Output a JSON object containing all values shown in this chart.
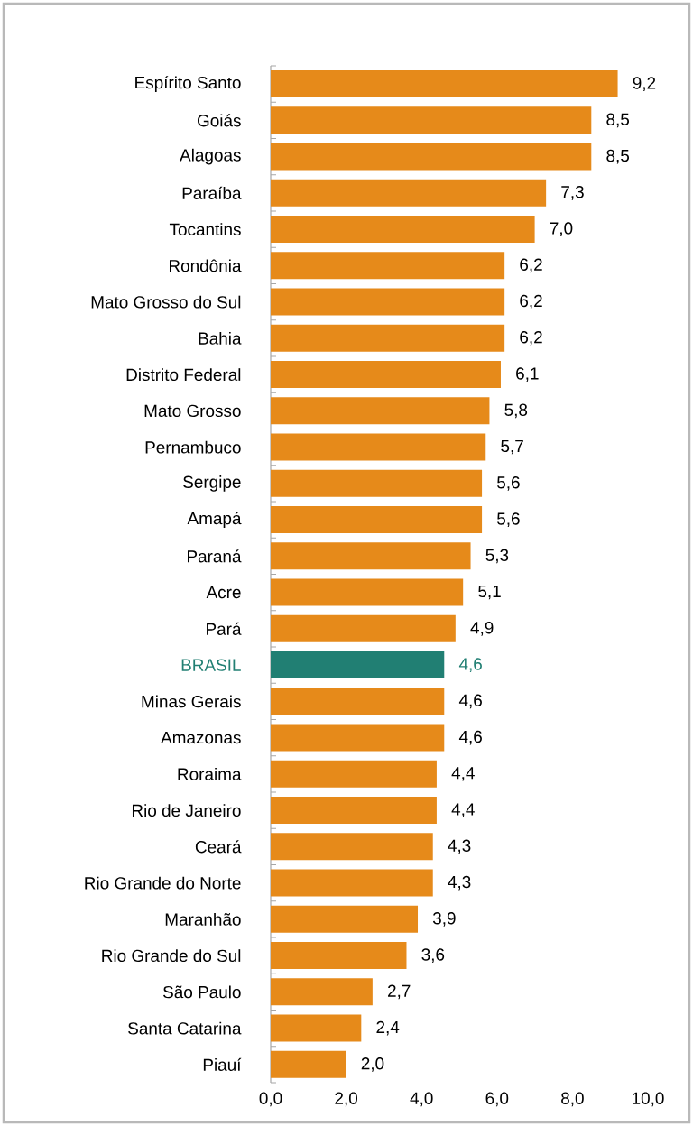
{
  "chart_data": {
    "type": "bar",
    "orientation": "horizontal",
    "categories": [
      "Espírito Santo",
      "Goiás",
      "Alagoas",
      "Paraíba",
      "Tocantins",
      "Rondônia",
      "Mato Grosso do Sul",
      "Bahia",
      "Distrito Federal",
      "Mato Grosso",
      "Pernambuco",
      "Sergipe",
      "Amapá",
      "Paraná",
      "Acre",
      "Pará",
      "BRASIL",
      "Minas Gerais",
      "Amazonas",
      "Roraima",
      "Rio de Janeiro",
      "Ceará",
      "Rio Grande do Norte",
      "Maranhão",
      "Rio Grande do Sul",
      "São Paulo",
      "Santa Catarina",
      "Piauí"
    ],
    "values": [
      9.2,
      8.5,
      8.5,
      7.3,
      7.0,
      6.2,
      6.2,
      6.2,
      6.1,
      5.8,
      5.7,
      5.6,
      5.6,
      5.3,
      5.1,
      4.9,
      4.6,
      4.6,
      4.6,
      4.4,
      4.4,
      4.3,
      4.3,
      3.9,
      3.6,
      2.7,
      2.4,
      2.0
    ],
    "value_labels": [
      "9,2",
      "8,5",
      "8,5",
      "7,3",
      "7,0",
      "6,2",
      "6,2",
      "6,2",
      "6,1",
      "5,8",
      "5,7",
      "5,6",
      "5,6",
      "5,3",
      "5,1",
      "4,9",
      "4,6",
      "4,6",
      "4,6",
      "4,4",
      "4,4",
      "4,3",
      "4,3",
      "3,9",
      "3,6",
      "2,7",
      "2,4",
      "2,0"
    ],
    "colors": [
      "#e68a1a",
      "#e68a1a",
      "#e68a1a",
      "#e68a1a",
      "#e68a1a",
      "#e68a1a",
      "#e68a1a",
      "#e68a1a",
      "#e68a1a",
      "#e68a1a",
      "#e68a1a",
      "#e68a1a",
      "#e68a1a",
      "#e68a1a",
      "#e68a1a",
      "#e68a1a",
      "#217f73",
      "#e68a1a",
      "#e68a1a",
      "#e68a1a",
      "#e68a1a",
      "#e68a1a",
      "#e68a1a",
      "#e68a1a",
      "#e68a1a",
      "#e68a1a",
      "#e68a1a",
      "#e68a1a"
    ],
    "xlim": [
      0,
      10
    ],
    "xticks": [
      {
        "value": 0,
        "label": "0,0"
      },
      {
        "value": 2,
        "label": "2,0"
      },
      {
        "value": 4,
        "label": "4,0"
      },
      {
        "value": 6,
        "label": "6,0"
      },
      {
        "value": 8,
        "label": "8,0"
      },
      {
        "value": 10,
        "label": "10,0"
      }
    ],
    "grid": false
  }
}
